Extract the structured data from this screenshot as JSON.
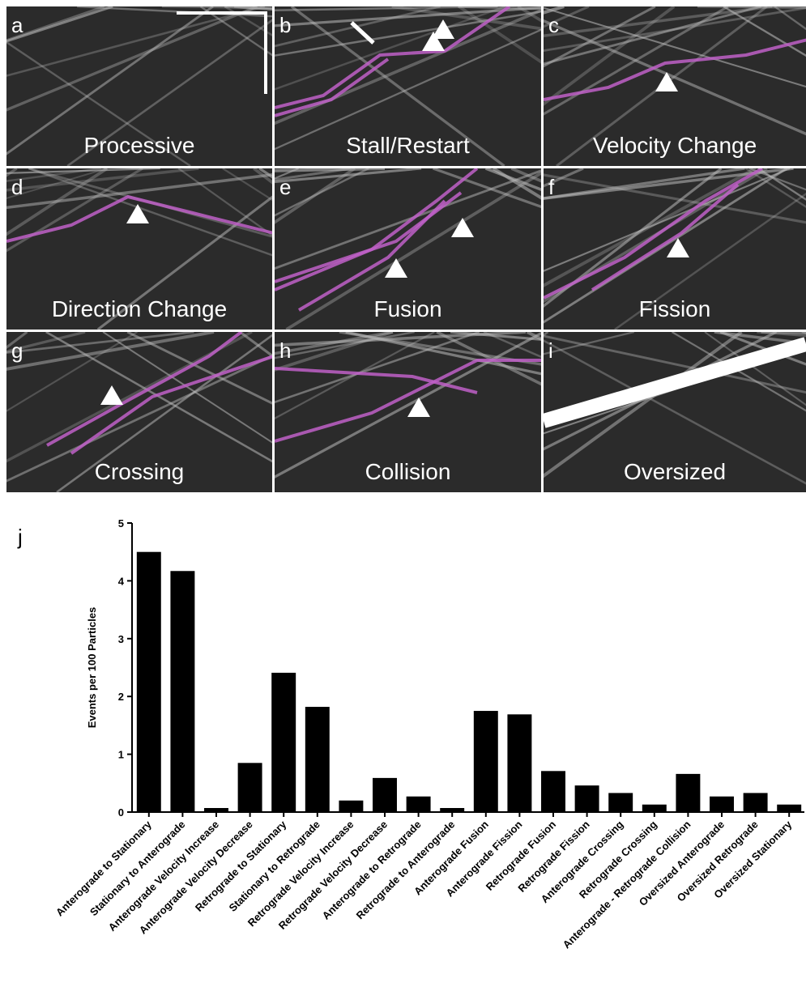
{
  "panels": [
    {
      "letter": "a",
      "label": "Processive"
    },
    {
      "letter": "b",
      "label": "Stall/Restart"
    },
    {
      "letter": "c",
      "label": "Velocity Change"
    },
    {
      "letter": "d",
      "label": "Direction Change"
    },
    {
      "letter": "e",
      "label": "Fusion"
    },
    {
      "letter": "f",
      "label": "Fission"
    },
    {
      "letter": "g",
      "label": "Crossing"
    },
    {
      "letter": "h",
      "label": "Collision"
    },
    {
      "letter": "i",
      "label": "Oversized"
    }
  ],
  "chart_data": {
    "type": "bar",
    "panel_letter": "j",
    "y_label": "Events per 100 Particles",
    "categories": [
      "Anterograde to Stationary",
      "Stationary to Anterograde",
      "Anterograde Velocity Increase",
      "Anterograde Velocity Decrease",
      "Retrograde to Stationary",
      "Stationary to Retrograde",
      "Retrograde Velocity Increase",
      "Retrograde Velocity Decrease",
      "Anterograde to Retrograde",
      "Retrograde to Anterograde",
      "Anterograde Fusion",
      "Anterograde Fission",
      "Retrograde Fusion",
      "Retrograde Fission",
      "Anterograde Crossing",
      "Retrograde Crossing",
      "Anterograde - Retrograde Collision",
      "Oversized Anterograde",
      "Oversized Retrograde",
      "Oversized Stationary"
    ],
    "values": [
      4.5,
      4.17,
      0.07,
      0.85,
      2.41,
      1.82,
      0.2,
      0.59,
      0.27,
      0.07,
      1.75,
      1.69,
      0.71,
      0.46,
      0.33,
      0.13,
      0.66,
      0.27,
      0.33,
      0.13
    ],
    "color": "#000000",
    "ylim": [
      0,
      5
    ],
    "yticks": [
      0,
      1,
      2,
      3,
      4,
      5
    ]
  }
}
